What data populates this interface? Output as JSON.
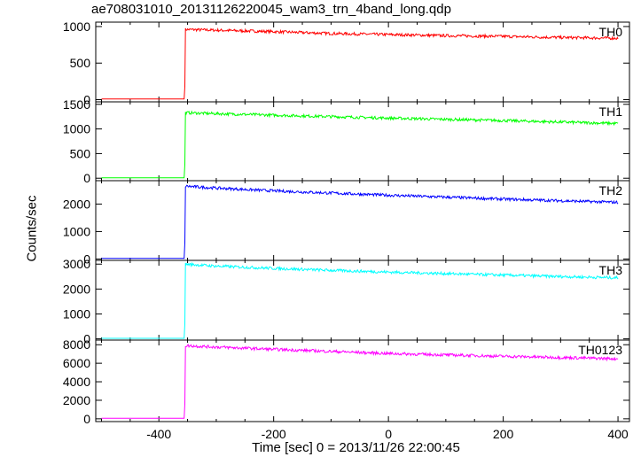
{
  "chart_data": {
    "type": "line",
    "title": "ae708031010_20131126220045_wam3_trn_4band_long.qdp",
    "xlabel": "Time [sec] 0 = 2013/11/26 22:00:45",
    "ylabel": "Counts/sec",
    "xlim": [
      -510,
      420
    ],
    "xticks": [
      -400,
      -200,
      0,
      200,
      400
    ],
    "grid": false,
    "panels": [
      {
        "name": "TH0",
        "color": "#ff0000",
        "ylim": [
          -30,
          1060
        ],
        "yticks": [
          0,
          500,
          1000
        ],
        "series": [
          {
            "name": "TH0",
            "x": [
              -500,
              -355,
              -354,
              -300,
              -200,
              -100,
              0,
              100,
              200,
              300,
              400
            ],
            "y": [
              10,
              10,
              960,
              950,
              930,
              905,
              890,
              875,
              865,
              850,
              840
            ]
          }
        ]
      },
      {
        "name": "TH1",
        "color": "#00ff00",
        "ylim": [
          -50,
          1550
        ],
        "yticks": [
          0,
          500,
          1000,
          1500
        ],
        "series": [
          {
            "name": "TH1",
            "x": [
              -500,
              -355,
              -354,
              -300,
              -200,
              -100,
              0,
              100,
              200,
              300,
              400
            ],
            "y": [
              8,
              8,
              1330,
              1310,
              1280,
              1250,
              1220,
              1195,
              1170,
              1140,
              1110
            ]
          }
        ]
      },
      {
        "name": "TH2",
        "color": "#0000ff",
        "ylim": [
          -50,
          2850
        ],
        "yticks": [
          0,
          1000,
          2000
        ],
        "series": [
          {
            "name": "TH2",
            "x": [
              -500,
              -355,
              -354,
              -300,
              -200,
              -100,
              0,
              100,
              200,
              300,
              400
            ],
            "y": [
              20,
              20,
              2650,
              2580,
              2480,
              2400,
              2320,
              2250,
              2180,
              2120,
              2060
            ]
          }
        ]
      },
      {
        "name": "TH3",
        "color": "#00ffff",
        "ylim": [
          -50,
          3150
        ],
        "yticks": [
          0,
          1000,
          2000,
          3000
        ],
        "series": [
          {
            "name": "TH3",
            "x": [
              -500,
              -355,
              -354,
              -300,
              -200,
              -100,
              0,
              100,
              200,
              300,
              400
            ],
            "y": [
              20,
              20,
              3000,
              2920,
              2830,
              2750,
              2680,
              2620,
              2560,
              2500,
              2450
            ]
          }
        ]
      },
      {
        "name": "TH0123",
        "color": "#ff00ff",
        "ylim": [
          -300,
          8500
        ],
        "yticks": [
          0,
          2000,
          4000,
          6000,
          8000
        ],
        "series": [
          {
            "name": "TH0123",
            "x": [
              -500,
              -355,
              -354,
              -300,
              -200,
              -100,
              0,
              100,
              200,
              300,
              400
            ],
            "y": [
              50,
              50,
              7900,
              7750,
              7500,
              7280,
              7050,
              6900,
              6750,
              6620,
              6480
            ]
          }
        ]
      }
    ]
  }
}
